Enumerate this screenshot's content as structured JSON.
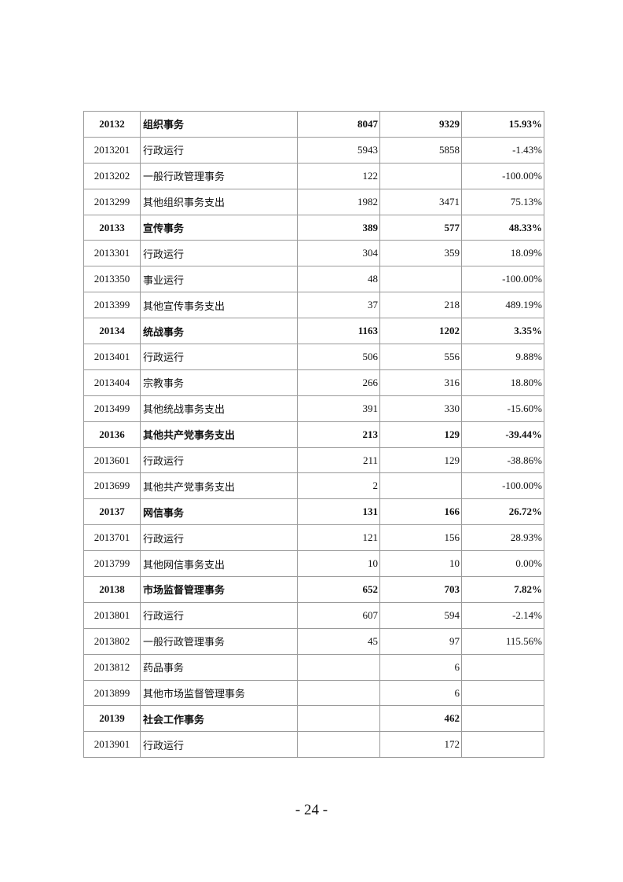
{
  "table": {
    "rows": [
      {
        "code": "20132",
        "name": "组织事务",
        "v1": "8047",
        "v2": "9329",
        "pct": "15.93%",
        "bold": true
      },
      {
        "code": "2013201",
        "name": "行政运行",
        "v1": "5943",
        "v2": "5858",
        "pct": "-1.43%"
      },
      {
        "code": "2013202",
        "name": "一般行政管理事务",
        "v1": "122",
        "v2": "",
        "pct": "-100.00%"
      },
      {
        "code": "2013299",
        "name": "其他组织事务支出",
        "v1": "1982",
        "v2": "3471",
        "pct": "75.13%"
      },
      {
        "code": "20133",
        "name": "宣传事务",
        "v1": "389",
        "v2": "577",
        "pct": "48.33%",
        "bold": true
      },
      {
        "code": "2013301",
        "name": "行政运行",
        "v1": "304",
        "v2": "359",
        "pct": "18.09%"
      },
      {
        "code": "2013350",
        "name": "事业运行",
        "v1": "48",
        "v2": "",
        "pct": "-100.00%"
      },
      {
        "code": "2013399",
        "name": "其他宣传事务支出",
        "v1": "37",
        "v2": "218",
        "pct": "489.19%"
      },
      {
        "code": "20134",
        "name": "统战事务",
        "v1": "1163",
        "v2": "1202",
        "pct": "3.35%",
        "bold": true
      },
      {
        "code": "2013401",
        "name": "行政运行",
        "v1": "506",
        "v2": "556",
        "pct": "9.88%"
      },
      {
        "code": "2013404",
        "name": "宗教事务",
        "v1": "266",
        "v2": "316",
        "pct": "18.80%"
      },
      {
        "code": "2013499",
        "name": "其他统战事务支出",
        "v1": "391",
        "v2": "330",
        "pct": "-15.60%"
      },
      {
        "code": "20136",
        "name": "其他共产党事务支出",
        "v1": "213",
        "v2": "129",
        "pct": "-39.44%",
        "bold": true
      },
      {
        "code": "2013601",
        "name": "行政运行",
        "v1": "211",
        "v2": "129",
        "pct": "-38.86%"
      },
      {
        "code": "2013699",
        "name": "其他共产党事务支出",
        "v1": "2",
        "v2": "",
        "pct": "-100.00%"
      },
      {
        "code": "20137",
        "name": "网信事务",
        "v1": "131",
        "v2": "166",
        "pct": "26.72%",
        "bold": true
      },
      {
        "code": "2013701",
        "name": "行政运行",
        "v1": "121",
        "v2": "156",
        "pct": "28.93%"
      },
      {
        "code": "2013799",
        "name": "其他网信事务支出",
        "v1": "10",
        "v2": "10",
        "pct": "0.00%"
      },
      {
        "code": "20138",
        "name": "市场监督管理事务",
        "v1": "652",
        "v2": "703",
        "pct": "7.82%",
        "bold": true
      },
      {
        "code": "2013801",
        "name": "行政运行",
        "v1": "607",
        "v2": "594",
        "pct": "-2.14%"
      },
      {
        "code": "2013802",
        "name": "一般行政管理事务",
        "v1": "45",
        "v2": "97",
        "pct": "115.56%"
      },
      {
        "code": "2013812",
        "name": "药品事务",
        "v1": "",
        "v2": "6",
        "pct": ""
      },
      {
        "code": "2013899",
        "name": "其他市场监督管理事务",
        "v1": "",
        "v2": "6",
        "pct": ""
      },
      {
        "code": "20139",
        "name": "社会工作事务",
        "v1": "",
        "v2": "462",
        "pct": "",
        "bold": true
      },
      {
        "code": "2013901",
        "name": "行政运行",
        "v1": "",
        "v2": "172",
        "pct": ""
      }
    ]
  },
  "footer": {
    "page_number": "- 24 -"
  }
}
